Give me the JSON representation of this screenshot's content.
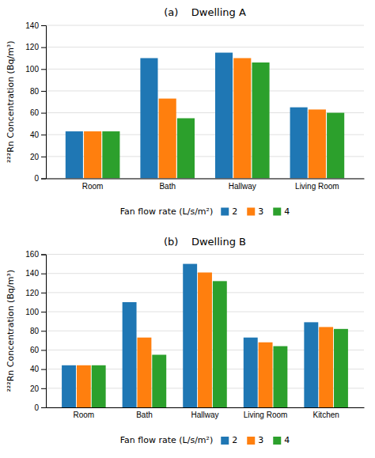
{
  "chart_data": [
    {
      "type": "bar",
      "title": "(a)    Dwelling A",
      "y_label": "²²²Rn Concentration (Bq/m³)",
      "legend_title": "Fan flow rate (L/s/m²)",
      "categories": [
        "Room",
        "Bath",
        "Hallway",
        "Living Room"
      ],
      "series": [
        {
          "name": "2",
          "values": [
            43,
            110,
            115,
            65
          ]
        },
        {
          "name": "3",
          "values": [
            43,
            73,
            110,
            63
          ]
        },
        {
          "name": "4",
          "values": [
            43,
            55,
            106,
            60
          ]
        }
      ],
      "ylim": [
        0,
        140
      ],
      "yticks": [
        0,
        20,
        40,
        60,
        80,
        100,
        120,
        140
      ],
      "grid": true,
      "legend": "bottom"
    },
    {
      "type": "bar",
      "title": "(b)    Dwelling B",
      "y_label": "²²²Rn Concentration (Bq/m³)",
      "legend_title": "Fan flow rate (L/s/m²)",
      "categories": [
        "Room",
        "Bath",
        "Hallway",
        "Living Room",
        "Kitchen"
      ],
      "series": [
        {
          "name": "2",
          "values": [
            44,
            110,
            150,
            73,
            89
          ]
        },
        {
          "name": "3",
          "values": [
            44,
            73,
            141,
            68,
            84
          ]
        },
        {
          "name": "4",
          "values": [
            44,
            55,
            132,
            64,
            82
          ]
        }
      ],
      "ylim": [
        0,
        160
      ],
      "yticks": [
        0,
        20,
        40,
        60,
        80,
        100,
        120,
        140,
        160
      ],
      "grid": true,
      "legend": "bottom"
    }
  ]
}
